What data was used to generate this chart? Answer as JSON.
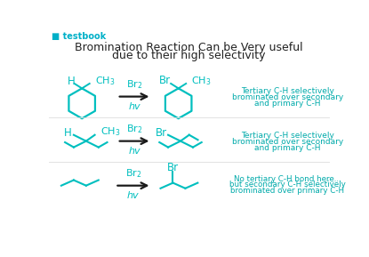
{
  "title_line1": "Bromination Reaction Can be Very useful",
  "title_line2": "due to their high selectivity",
  "logo_text": "■ testbook",
  "teal_color": "#00BFBF",
  "black_color": "#1a1a1a",
  "bg_color": "#FFFFFF",
  "ann_color": "#00AAAA",
  "annotation1": [
    "Tertiary C-H selectively",
    "brominated over secondary",
    "and primary C-H"
  ],
  "annotation2": [
    "Tertiary C-H selectively",
    "brominated over secondary",
    "and primary C-H"
  ],
  "annotation3": [
    "No tertiary C-H bond here...",
    "but secondary C-H selectively",
    "brominated over primary C-H"
  ]
}
